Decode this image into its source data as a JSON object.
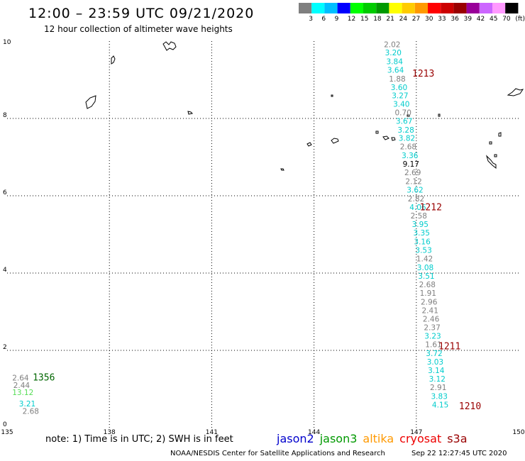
{
  "header": {
    "title": "12:00 – 23:59 UTC 09/21/2020",
    "subtitle": "12 hour collection of altimeter wave heights"
  },
  "colorbar": {
    "colors": [
      "#7f7f7f",
      "#00ffff",
      "#00bfff",
      "#0000ff",
      "#00ff00",
      "#00cc00",
      "#009900",
      "#ffff00",
      "#ffcc00",
      "#ff9900",
      "#ff0000",
      "#cc0000",
      "#990000",
      "#990099",
      "#cc66ff",
      "#ff99ff",
      "#000000"
    ],
    "labels": [
      "3",
      "6",
      "9",
      "12",
      "15",
      "18",
      "21",
      "24",
      "27",
      "30",
      "33",
      "36",
      "39",
      "42",
      "45",
      "70",
      "(ft)"
    ]
  },
  "map": {
    "lon_ticks": [
      "135",
      "138",
      "141",
      "144",
      "147",
      "150"
    ],
    "lat_ticks": [
      "0",
      "2",
      "4",
      "6",
      "8",
      "10"
    ],
    "lon_range": [
      135,
      150
    ],
    "lat_range": [
      0,
      10
    ]
  },
  "observations": [
    {
      "text": "2.02",
      "color": "#7f7f7f",
      "lon": 146.05,
      "lat": 9.84
    },
    {
      "text": "3.20",
      "color": "#00cccc",
      "lon": 146.08,
      "lat": 9.63
    },
    {
      "text": "3.84",
      "color": "#00cccc",
      "lon": 146.12,
      "lat": 9.4
    },
    {
      "text": "3.64",
      "color": "#00cccc",
      "lon": 146.15,
      "lat": 9.18
    },
    {
      "text": "1.88",
      "color": "#7f7f7f",
      "lon": 146.2,
      "lat": 8.95
    },
    {
      "text": "3.60",
      "color": "#00cccc",
      "lon": 146.25,
      "lat": 8.73
    },
    {
      "text": "3.27",
      "color": "#00cccc",
      "lon": 146.28,
      "lat": 8.52
    },
    {
      "text": "3.40",
      "color": "#00cccc",
      "lon": 146.32,
      "lat": 8.3
    },
    {
      "text": "0.70",
      "color": "#7f7f7f",
      "lon": 146.37,
      "lat": 8.08
    },
    {
      "text": "3.67",
      "color": "#00cccc",
      "lon": 146.4,
      "lat": 7.86
    },
    {
      "text": "3.28",
      "color": "#00cccc",
      "lon": 146.45,
      "lat": 7.63
    },
    {
      "text": "3.82",
      "color": "#00cccc",
      "lon": 146.48,
      "lat": 7.42
    },
    {
      "text": "2.68",
      "color": "#7f7f7f",
      "lon": 146.52,
      "lat": 7.2
    },
    {
      "text": "3.36",
      "color": "#00cccc",
      "lon": 146.57,
      "lat": 6.97
    },
    {
      "text": "9.17",
      "color": "#000000",
      "lon": 146.6,
      "lat": 6.75
    },
    {
      "text": "2.69",
      "color": "#7f7f7f",
      "lon": 146.65,
      "lat": 6.53
    },
    {
      "text": "2.12",
      "color": "#7f7f7f",
      "lon": 146.68,
      "lat": 6.3
    },
    {
      "text": "3.62",
      "color": "#00cccc",
      "lon": 146.72,
      "lat": 6.08
    },
    {
      "text": "2.82",
      "color": "#7f7f7f",
      "lon": 146.75,
      "lat": 5.85
    },
    {
      "text": "4.06",
      "color": "#00cccc",
      "lon": 146.8,
      "lat": 5.63
    },
    {
      "text": "2.58",
      "color": "#7f7f7f",
      "lon": 146.83,
      "lat": 5.41
    },
    {
      "text": "3.95",
      "color": "#00cccc",
      "lon": 146.87,
      "lat": 5.19
    },
    {
      "text": "3.35",
      "color": "#00cccc",
      "lon": 146.91,
      "lat": 4.97
    },
    {
      "text": "3.16",
      "color": "#00cccc",
      "lon": 146.93,
      "lat": 4.74
    },
    {
      "text": "3.53",
      "color": "#00cccc",
      "lon": 146.97,
      "lat": 4.52
    },
    {
      "text": "1.42",
      "color": "#7f7f7f",
      "lon": 147.0,
      "lat": 4.3
    },
    {
      "text": "3.08",
      "color": "#00cccc",
      "lon": 147.02,
      "lat": 4.07
    },
    {
      "text": "3.51",
      "color": "#00cccc",
      "lon": 147.05,
      "lat": 3.85
    },
    {
      "text": "2.68",
      "color": "#7f7f7f",
      "lon": 147.08,
      "lat": 3.63
    },
    {
      "text": "1.91",
      "color": "#7f7f7f",
      "lon": 147.1,
      "lat": 3.41
    },
    {
      "text": "2.96",
      "color": "#7f7f7f",
      "lon": 147.13,
      "lat": 3.18
    },
    {
      "text": "2.41",
      "color": "#7f7f7f",
      "lon": 147.16,
      "lat": 2.96
    },
    {
      "text": "2.46",
      "color": "#7f7f7f",
      "lon": 147.19,
      "lat": 2.74
    },
    {
      "text": "2.37",
      "color": "#7f7f7f",
      "lon": 147.22,
      "lat": 2.52
    },
    {
      "text": "3.23",
      "color": "#00cccc",
      "lon": 147.24,
      "lat": 2.3
    },
    {
      "text": "1.61",
      "color": "#7f7f7f",
      "lon": 147.26,
      "lat": 2.08
    },
    {
      "text": "3.72",
      "color": "#00cccc",
      "lon": 147.28,
      "lat": 1.85
    },
    {
      "text": "3.03",
      "color": "#00cccc",
      "lon": 147.31,
      "lat": 1.63
    },
    {
      "text": "3.14",
      "color": "#00cccc",
      "lon": 147.34,
      "lat": 1.41
    },
    {
      "text": "3.12",
      "color": "#00cccc",
      "lon": 147.37,
      "lat": 1.19
    },
    {
      "text": "2.91",
      "color": "#7f7f7f",
      "lon": 147.4,
      "lat": 0.97
    },
    {
      "text": "3.83",
      "color": "#00cccc",
      "lon": 147.43,
      "lat": 0.74
    },
    {
      "text": "4.15",
      "color": "#00cccc",
      "lon": 147.46,
      "lat": 0.52
    },
    {
      "text": "2.64",
      "color": "#7f7f7f",
      "lon": 135.15,
      "lat": 1.22
    },
    {
      "text": "2.44",
      "color": "#7f7f7f",
      "lon": 135.18,
      "lat": 1.03
    },
    {
      "text": "13.12",
      "color": "#55dd55",
      "lon": 135.15,
      "lat": 0.84
    },
    {
      "text": "3.21",
      "color": "#00cccc",
      "lon": 135.35,
      "lat": 0.55
    },
    {
      "text": "2.68",
      "color": "#7f7f7f",
      "lon": 135.45,
      "lat": 0.36
    }
  ],
  "passes": [
    {
      "text": "1213",
      "color": "#990000",
      "lon": 146.88,
      "lat": 9.08
    },
    {
      "text": "1212",
      "color": "#990000",
      "lon": 147.1,
      "lat": 5.62
    },
    {
      "text": "1211",
      "color": "#990000",
      "lon": 147.65,
      "lat": 2.03
    },
    {
      "text": "1210",
      "color": "#990000",
      "lon": 148.25,
      "lat": 0.48
    },
    {
      "text": "1356",
      "color": "#006600",
      "lon": 135.75,
      "lat": 1.22
    }
  ],
  "footer": {
    "note": "note: 1) Time is in UTC; 2) SWH is in feet",
    "satellites": [
      {
        "name": "jason2",
        "color": "#0000cc"
      },
      {
        "name": "jason3",
        "color": "#009900"
      },
      {
        "name": "altika",
        "color": "#ff9900"
      },
      {
        "name": "cryosat",
        "color": "#ee0000"
      },
      {
        "name": "s3a",
        "color": "#990000"
      }
    ],
    "credit": "NOAA/NESDIS Center for Satellite Applications and Research",
    "timestamp": "Sep 22 12:27:45 UTC 2020"
  }
}
